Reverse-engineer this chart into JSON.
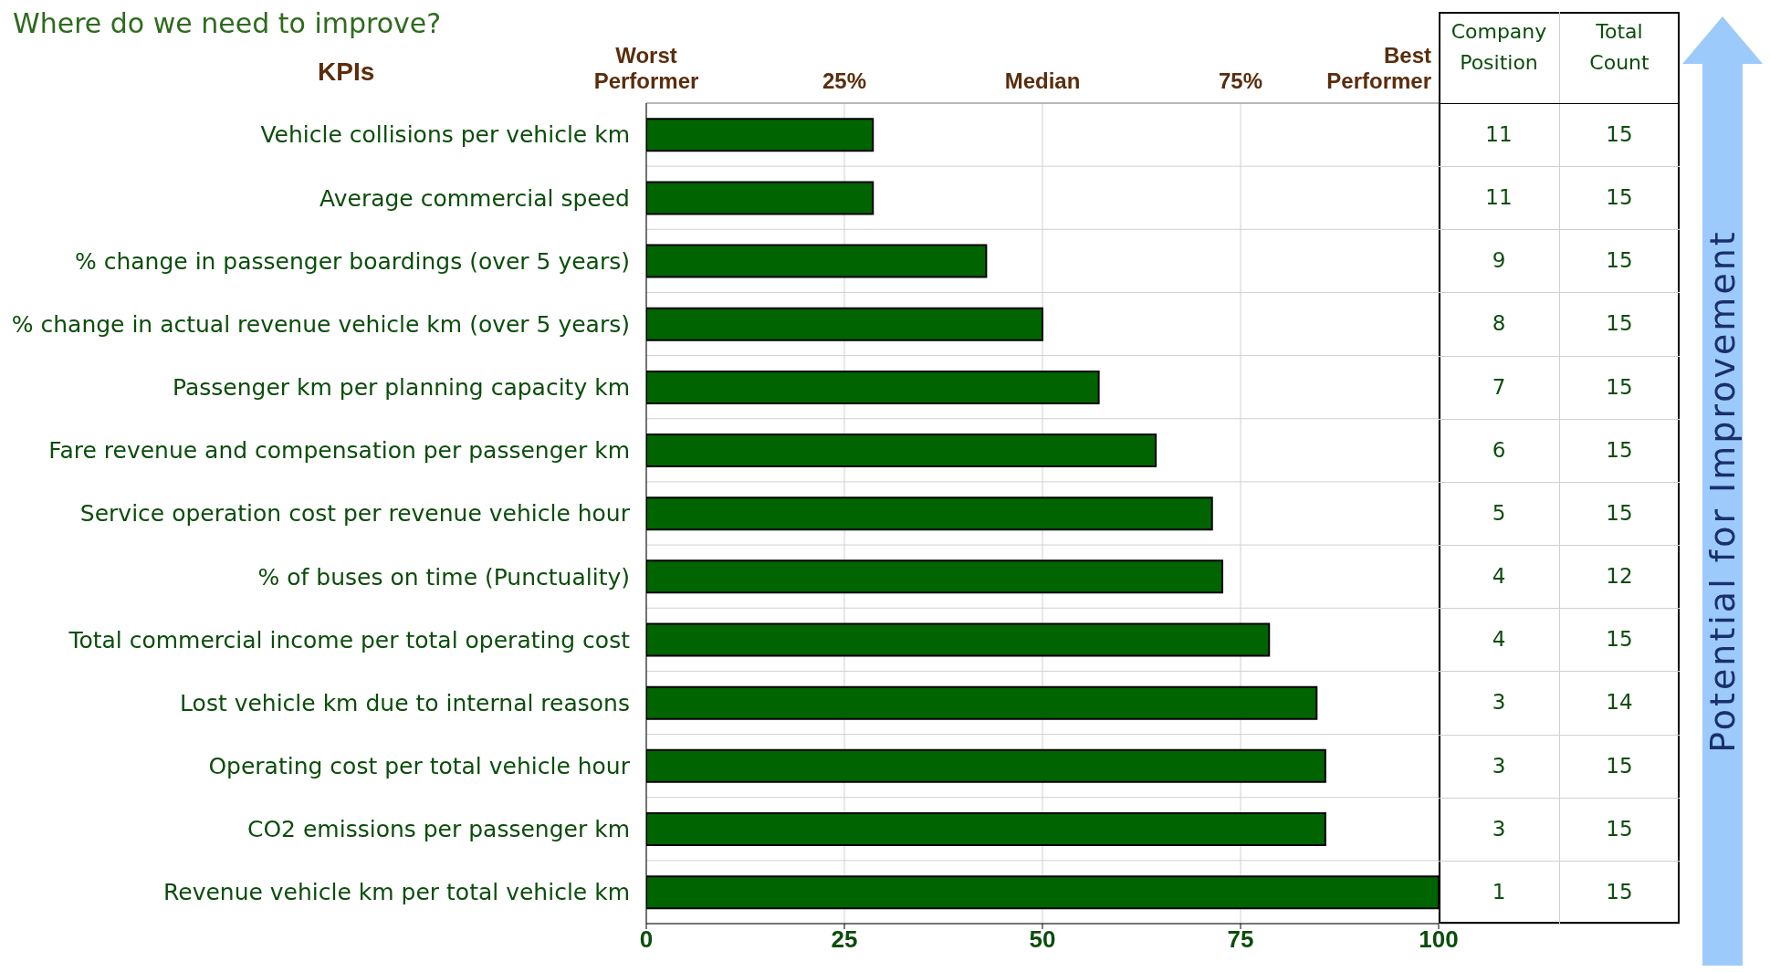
{
  "chart_data": {
    "type": "bar",
    "orientation": "horizontal",
    "title": "Where do we need to improve?",
    "ylabel": "KPIs",
    "categories": [
      "Vehicle collisions per vehicle km",
      "Average commercial speed",
      "% change in passenger boardings (over 5 years)",
      "% change in actual revenue vehicle km (over 5 years)",
      "Passenger km per planning capacity km",
      "Fare revenue and compensation per passenger km",
      "Service operation cost per revenue vehicle hour",
      "% of buses on time (Punctuality)",
      "Total commercial income per total operating cost",
      "Lost vehicle km due to internal reasons",
      "Operating cost per total vehicle hour",
      "CO2 emissions per passenger km",
      "Revenue vehicle km per total vehicle km"
    ],
    "values": [
      28.6,
      28.6,
      42.9,
      50,
      57.1,
      64.3,
      71.4,
      72.7,
      78.6,
      84.6,
      85.7,
      85.7,
      100
    ],
    "color": "#006400",
    "xlim": [
      0,
      100
    ],
    "xticks": [
      0,
      25,
      50,
      75,
      100
    ],
    "x2lim": [
      0,
      100
    ],
    "x2ticks": [
      {
        "value": 0,
        "label": "Worst Performer"
      },
      {
        "value": 25,
        "label": "25%"
      },
      {
        "value": 50,
        "label": "Median"
      },
      {
        "value": 75,
        "label": "75%"
      },
      {
        "value": 100,
        "label": "Best Performer"
      }
    ],
    "grid": true,
    "annotations": [
      "Company Position",
      "Total Count",
      "Potential for Improvement",
      "11",
      "15",
      "11",
      "15",
      "9",
      "15",
      "8",
      "15",
      "7",
      "15",
      "6",
      "15",
      "5",
      "15",
      "4",
      "12",
      "4",
      "15",
      "3",
      "14",
      "3",
      "15",
      "3",
      "15",
      "1",
      "15"
    ]
  }
}
